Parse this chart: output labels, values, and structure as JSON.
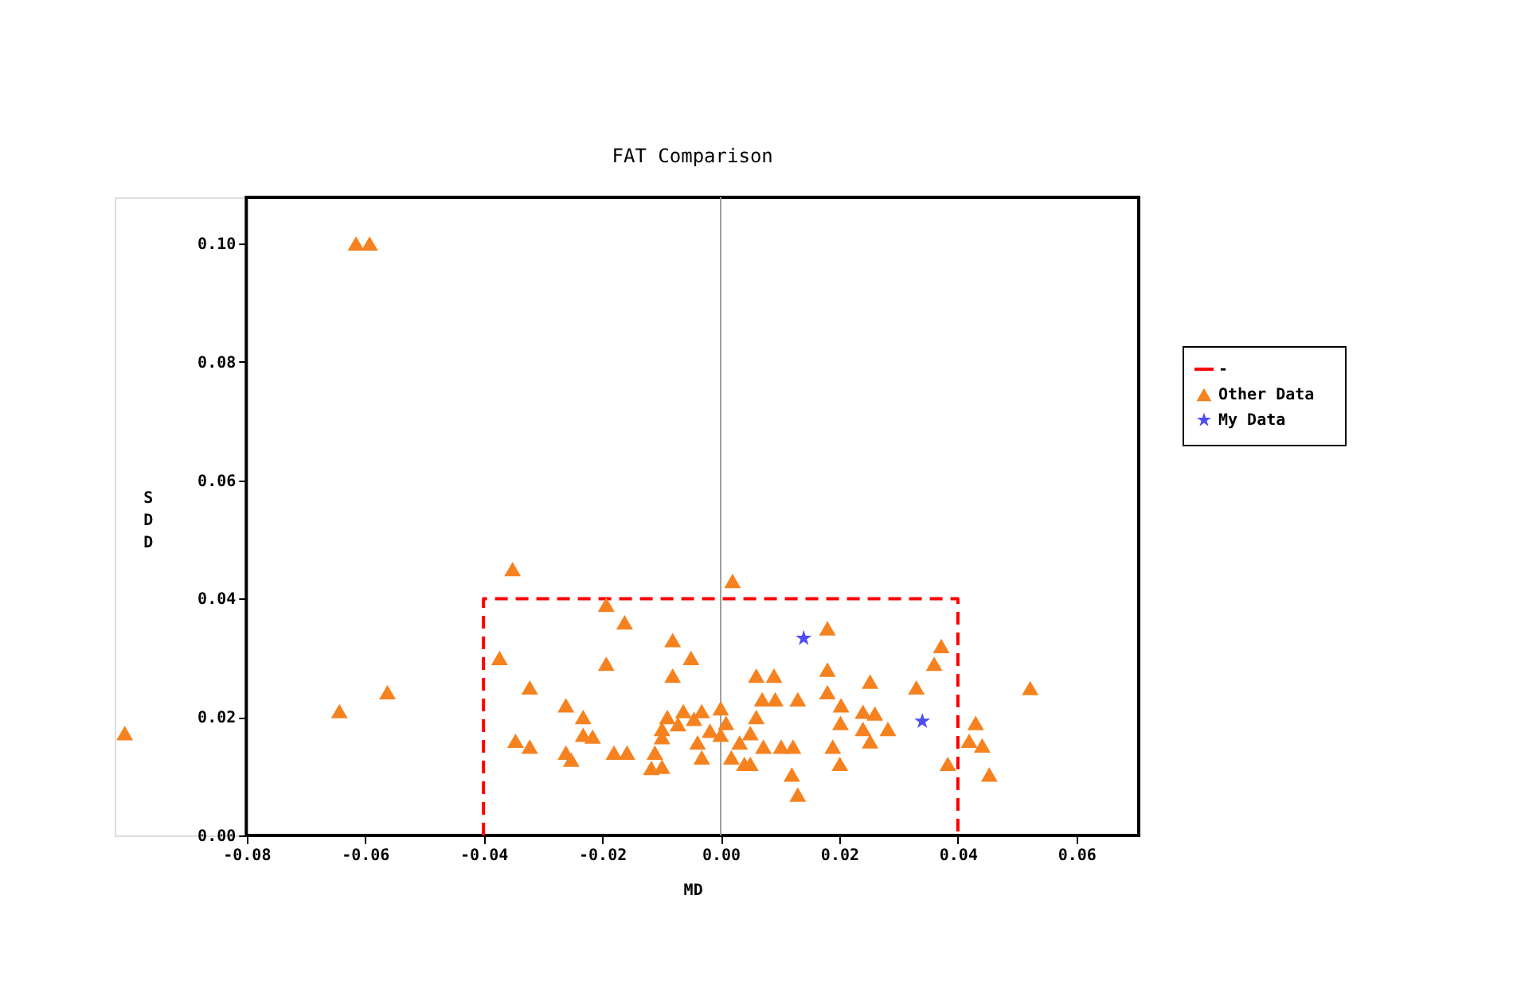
{
  "chart_data": {
    "type": "scatter",
    "title": "FAT Comparison",
    "xlabel": "MD",
    "ylabel": "SDD",
    "xlim": [
      -0.1022,
      0.0705
    ],
    "ylim": [
      0,
      0.1078
    ],
    "xticks": [
      {
        "value": -0.08,
        "label": "-0.08"
      },
      {
        "value": -0.06,
        "label": "-0.06"
      },
      {
        "value": -0.04,
        "label": "-0.04"
      },
      {
        "value": -0.02,
        "label": "-0.02"
      },
      {
        "value": 0,
        "label": "0.00"
      },
      {
        "value": 0.02,
        "label": "0.02"
      },
      {
        "value": 0.04,
        "label": "0.04"
      },
      {
        "value": 0.06,
        "label": "0.06"
      }
    ],
    "yticks": [
      {
        "value": 0,
        "label": "0.00"
      },
      {
        "value": 0.02,
        "label": "0.02"
      },
      {
        "value": 0.04,
        "label": "0.04"
      },
      {
        "value": 0.06,
        "label": "0.06"
      },
      {
        "value": 0.08,
        "label": "0.08"
      },
      {
        "value": 0.1,
        "label": "0.10"
      }
    ],
    "grid": false,
    "legend": "right",
    "ref_lines": [
      {
        "axis": "x",
        "value": 0,
        "color": "#a0a0a0"
      }
    ],
    "series": [
      {
        "name": "-",
        "type": "line",
        "color": "#ff0000",
        "line_style": "dashed",
        "x": [
          -0.04,
          -0.04,
          0.04,
          0.04
        ],
        "values": [
          0,
          0.04,
          0.04,
          0
        ]
      },
      {
        "name": "Other Data",
        "color": "#f5821f",
        "marker": "triangle",
        "x": [
          -0.0351,
          0.002,
          -0.0193,
          -0.0162,
          -0.0081,
          -0.005,
          -0.0373,
          -0.0193,
          -0.0081,
          -0.0322,
          -0.0261,
          -0.0232,
          -0.0232,
          -0.0216,
          -0.0346,
          -0.0322,
          -0.0261,
          -0.0252,
          -0.018,
          -0.0158,
          -0.0111,
          -0.0099,
          -0.0117,
          -0.0099,
          -0.0099,
          -0.009,
          -0.0072,
          -0.0063,
          -0.0032,
          -0.0045,
          0.0,
          0.0009,
          -0.0018,
          0.0,
          -0.0039,
          -0.0032,
          0.0018,
          0.0032,
          0.004,
          0.018,
          0.0372,
          0.036,
          0.018,
          0.006,
          0.009,
          0.0252,
          0.033,
          0.018,
          0.007,
          0.0092,
          0.013,
          0.0203,
          0.024,
          0.026,
          0.0202,
          0.006,
          0.024,
          0.0282,
          0.005,
          0.0252,
          0.0189,
          0.0072,
          0.0102,
          0.0122,
          0.005,
          0.0201,
          0.012,
          0.013,
          0.0383,
          0.043,
          0.0419,
          0.0441,
          0.0453,
          0.0522,
          -0.0615,
          -0.0592,
          -0.0643,
          -0.0562,
          -0.1005
        ],
        "values": [
          0.045,
          0.043,
          0.039,
          0.036,
          0.033,
          0.03,
          0.03,
          0.029,
          0.027,
          0.025,
          0.022,
          0.02,
          0.017,
          0.0167,
          0.016,
          0.015,
          0.014,
          0.0128,
          0.014,
          0.014,
          0.014,
          0.0116,
          0.0114,
          0.018,
          0.0166,
          0.02,
          0.0188,
          0.021,
          0.021,
          0.0197,
          0.0215,
          0.019,
          0.0177,
          0.017,
          0.0157,
          0.0132,
          0.0132,
          0.0157,
          0.0121,
          0.035,
          0.032,
          0.029,
          0.028,
          0.027,
          0.027,
          0.026,
          0.025,
          0.0242,
          0.023,
          0.023,
          0.023,
          0.022,
          0.0209,
          0.0206,
          0.019,
          0.02,
          0.018,
          0.018,
          0.0173,
          0.0159,
          0.015,
          0.015,
          0.015,
          0.015,
          0.0121,
          0.0121,
          0.0103,
          0.0069,
          0.0121,
          0.019,
          0.016,
          0.0152,
          0.0103,
          0.0249,
          0.1,
          0.1,
          0.021,
          0.0242,
          0.0173
        ]
      },
      {
        "name": "My Data",
        "color": "#4d4df5",
        "marker": "star",
        "x": [
          0.014,
          0.034
        ],
        "values": [
          0.0333,
          0.0193
        ]
      }
    ]
  }
}
